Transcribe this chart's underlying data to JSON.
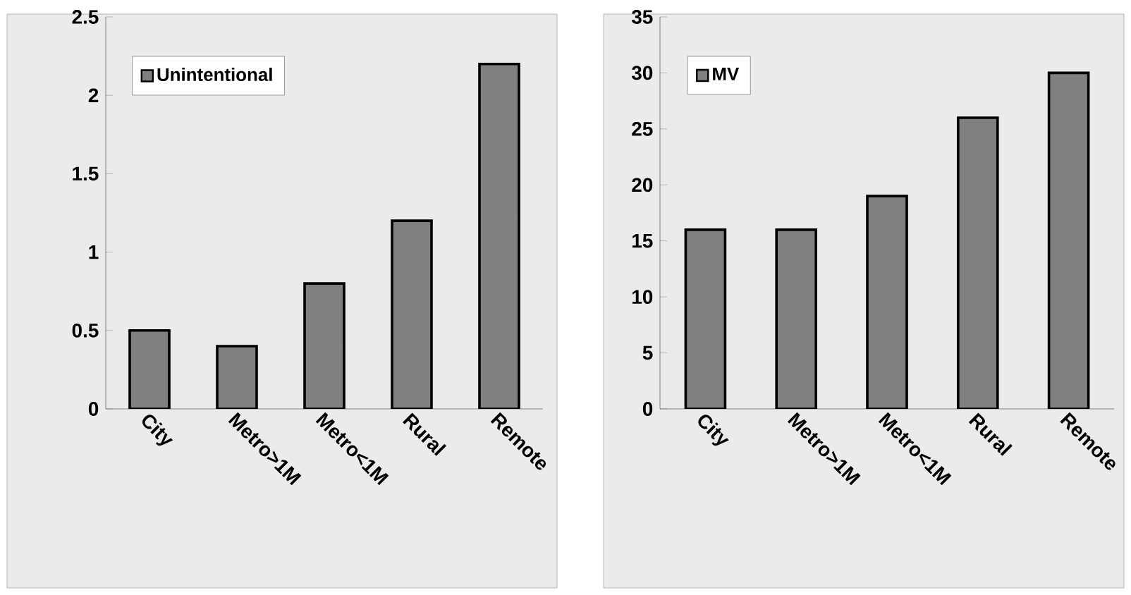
{
  "chart_data": [
    {
      "type": "bar",
      "categories": [
        "City",
        "Metro>1M",
        "Metro<1M",
        "Rural",
        "Remote"
      ],
      "series": [
        {
          "name": "Unintentional",
          "color": "#808080",
          "values": [
            0.5,
            0.4,
            0.8,
            1.2,
            2.2
          ]
        }
      ],
      "ylim": [
        0,
        2.5
      ],
      "yticks": [
        0,
        0.5,
        1,
        1.5,
        2,
        2.5
      ],
      "legend": "top left",
      "grid": false
    },
    {
      "type": "bar",
      "categories": [
        "City",
        "Metro>1M",
        "Metro<1M",
        "Rural",
        "Remote"
      ],
      "series": [
        {
          "name": "MV",
          "color": "#808080",
          "values": [
            16,
            16,
            19,
            26,
            30
          ]
        }
      ],
      "ylim": [
        0,
        35
      ],
      "yticks": [
        0,
        5,
        10,
        15,
        20,
        25,
        30,
        35
      ],
      "legend": "top left",
      "grid": false
    }
  ]
}
